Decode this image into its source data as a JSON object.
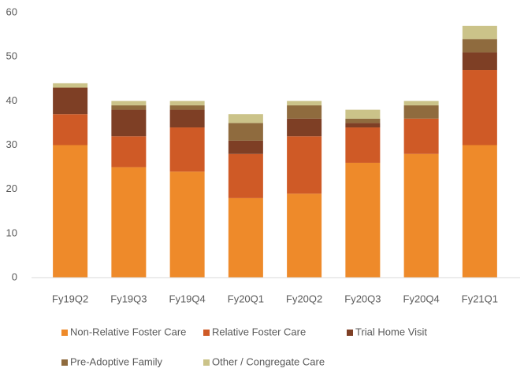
{
  "chart_data": {
    "type": "stacked_bar",
    "categories": [
      "Fy19Q2",
      "Fy19Q3",
      "Fy19Q4",
      "Fy20Q1",
      "Fy20Q2",
      "Fy20Q3",
      "Fy20Q4",
      "Fy21Q1"
    ],
    "series": [
      {
        "name": "Non-Relative Foster Care",
        "color": "#ee8a2a",
        "values": [
          30,
          25,
          24,
          18,
          19,
          26,
          28,
          30
        ]
      },
      {
        "name": "Relative Foster Care",
        "color": "#cf5a26",
        "values": [
          7,
          7,
          10,
          10,
          13,
          8,
          8,
          17
        ]
      },
      {
        "name": "Trial Home Visit",
        "color": "#7e3f25",
        "values": [
          6,
          6,
          4,
          3,
          4,
          1,
          0,
          4
        ]
      },
      {
        "name": "Pre-Adoptive Family",
        "color": "#8f6b3e",
        "values": [
          0,
          1,
          1,
          4,
          3,
          1,
          3,
          3
        ]
      },
      {
        "name": "Other / Congregate Care",
        "color": "#cbc389",
        "values": [
          1,
          1,
          1,
          2,
          1,
          2,
          1,
          3
        ]
      }
    ],
    "ylim": [
      0,
      60
    ],
    "yticks": [
      0,
      10,
      20,
      30,
      40,
      50,
      60
    ],
    "grid": false,
    "legend": "bottom"
  }
}
